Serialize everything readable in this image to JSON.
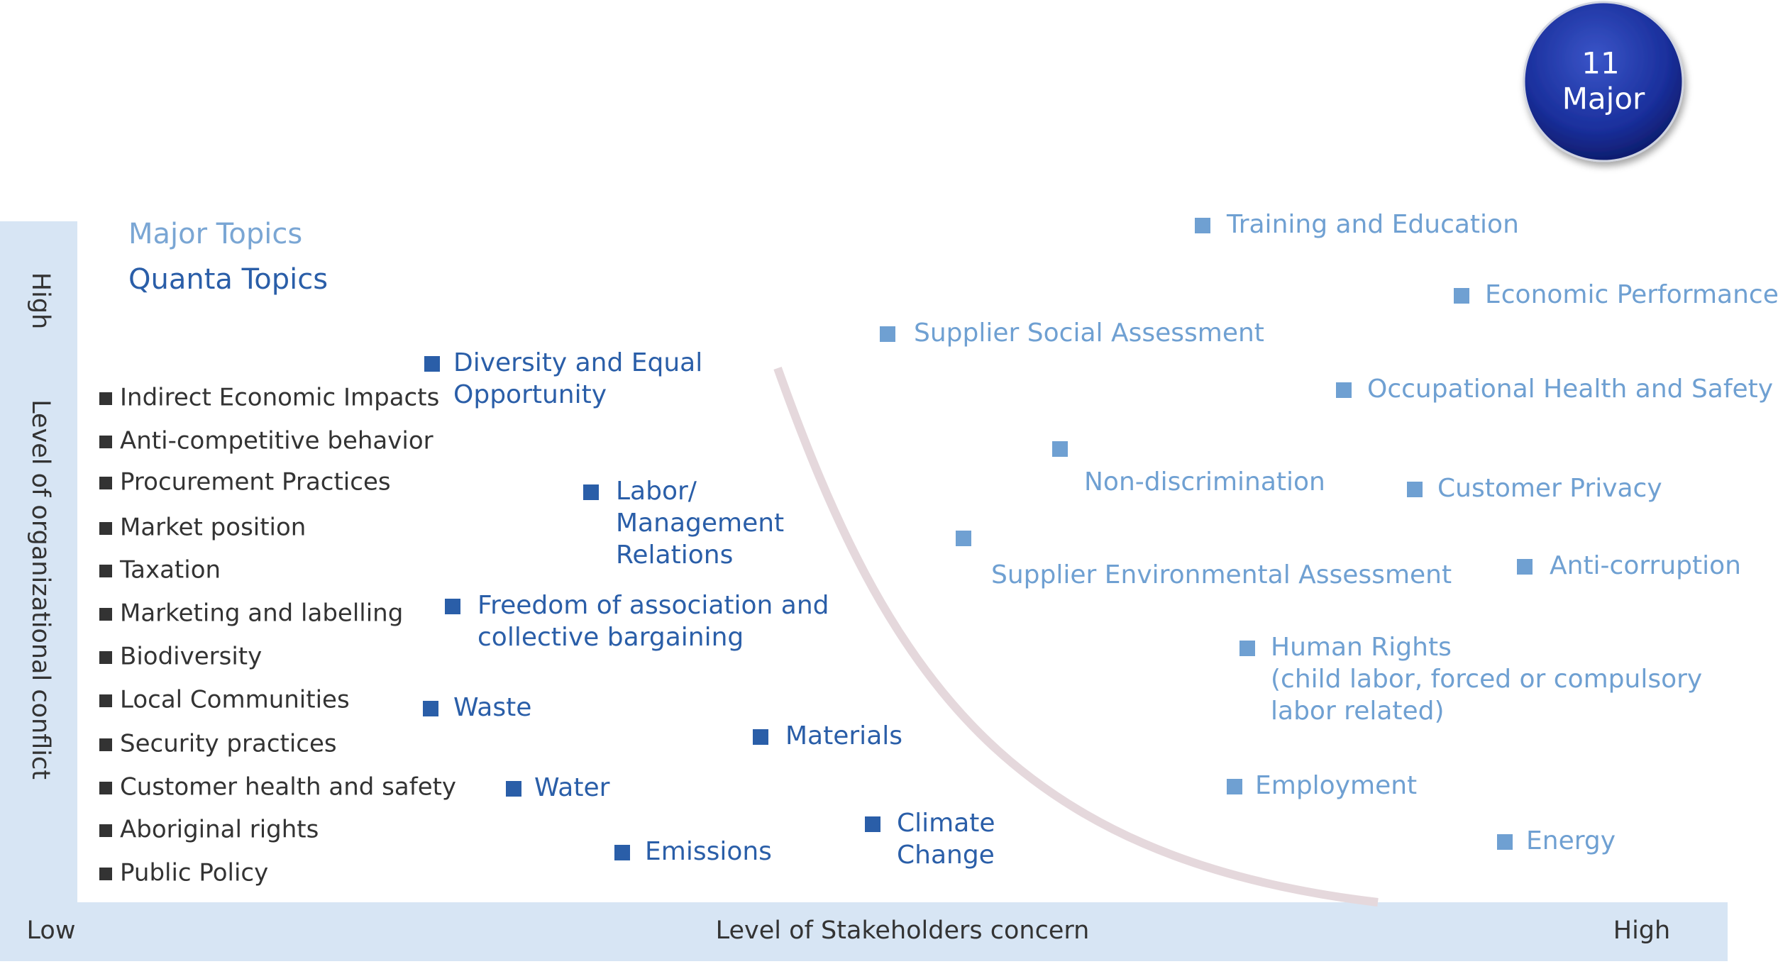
{
  "badge": {
    "number": "11",
    "label": "Major"
  },
  "y_axis": {
    "high": "High",
    "title": "Level of organizational conflict"
  },
  "x_axis": {
    "low": "Low",
    "title": "Level of Stakeholders concern",
    "high": "High"
  },
  "legend": {
    "major": "Major Topics",
    "quanta": "Quanta Topics"
  },
  "other_topics": [
    "Indirect Economic Impacts",
    "Anti-competitive behavior",
    "Procurement Practices",
    "Market position",
    "Taxation",
    "Marketing and labelling",
    "Biodiversity",
    "Local Communities",
    "Security practices",
    "Customer health and safety",
    "Aboriginal rights",
    "Public Policy"
  ],
  "quanta_topics": [
    {
      "lines": [
        "Diversity and Equal",
        "Opportunity"
      ]
    },
    {
      "lines": [
        "Labor/",
        "Management",
        "Relations"
      ]
    },
    {
      "lines": [
        "Freedom of association and",
        "collective bargaining"
      ]
    },
    {
      "lines": [
        "Waste"
      ]
    },
    {
      "lines": [
        "Materials"
      ]
    },
    {
      "lines": [
        "Water"
      ]
    },
    {
      "lines": [
        "Emissions"
      ]
    },
    {
      "lines": [
        "Climate",
        "Change"
      ]
    }
  ],
  "major_topics": [
    {
      "lines": [
        "Training and Education"
      ]
    },
    {
      "lines": [
        "Economic Performance"
      ]
    },
    {
      "lines": [
        "Supplier Social Assessment"
      ]
    },
    {
      "lines": [
        "Occupational Health and Safety"
      ]
    },
    {
      "lines": [
        "Non-discrimination"
      ]
    },
    {
      "lines": [
        "Customer Privacy"
      ]
    },
    {
      "lines": [
        "Supplier Environmental Assessment"
      ]
    },
    {
      "lines": [
        "Anti-corruption"
      ]
    },
    {
      "lines": [
        "Human Rights",
        "(child labor, forced or compulsory",
        "labor related)"
      ]
    },
    {
      "lines": [
        "Employment"
      ]
    },
    {
      "lines": [
        "Energy"
      ]
    }
  ]
}
